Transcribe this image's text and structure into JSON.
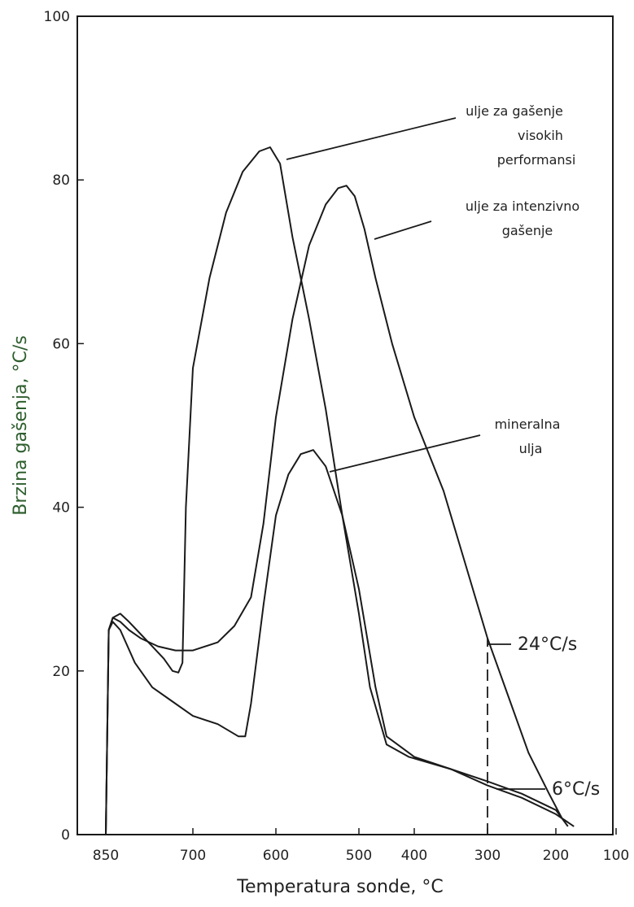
{
  "chart_data": {
    "type": "line",
    "title": "",
    "xlabel": "Temperatura sonde, °C",
    "ylabel": "Brzina gašenja, °C/s",
    "xlim": [
      100,
      850
    ],
    "ylim": [
      0,
      100
    ],
    "x_reversed": true,
    "x_ticks": [
      "850",
      "700",
      "600",
      "500",
      "400",
      "300",
      "200",
      "100"
    ],
    "y_ticks": [
      "0",
      "20",
      "40",
      "60",
      "80",
      "100"
    ],
    "grid": false,
    "series": [
      {
        "name": "ulje za gašenje visokih performansi",
        "points": [
          [
            850,
            0
          ],
          [
            845,
            25
          ],
          [
            838,
            26.5
          ],
          [
            825,
            27
          ],
          [
            810,
            26
          ],
          [
            790,
            24.5
          ],
          [
            770,
            23
          ],
          [
            750,
            21.5
          ],
          [
            735,
            20
          ],
          [
            725,
            19.8
          ],
          [
            718,
            21
          ],
          [
            712,
            40
          ],
          [
            700,
            57
          ],
          [
            680,
            68
          ],
          [
            660,
            76
          ],
          [
            640,
            81
          ],
          [
            620,
            83.5
          ],
          [
            607,
            84
          ],
          [
            595,
            82
          ],
          [
            580,
            73
          ],
          [
            560,
            63
          ],
          [
            540,
            52
          ],
          [
            520,
            39
          ],
          [
            500,
            27
          ],
          [
            480,
            18
          ],
          [
            465,
            14.5
          ],
          [
            450,
            11
          ],
          [
            410,
            9.5
          ],
          [
            350,
            8
          ],
          [
            300,
            6.5
          ],
          [
            250,
            5
          ],
          [
            200,
            3
          ],
          [
            180,
            1
          ]
        ]
      },
      {
        "name": "ulje za intenzivno gašenje",
        "points": [
          [
            850,
            0
          ],
          [
            845,
            25
          ],
          [
            838,
            26.5
          ],
          [
            825,
            26
          ],
          [
            810,
            25
          ],
          [
            790,
            24
          ],
          [
            760,
            23
          ],
          [
            730,
            22.5
          ],
          [
            700,
            22.5
          ],
          [
            670,
            23.5
          ],
          [
            650,
            25.5
          ],
          [
            630,
            29
          ],
          [
            615,
            38
          ],
          [
            600,
            51
          ],
          [
            580,
            63
          ],
          [
            560,
            72
          ],
          [
            540,
            77
          ],
          [
            525,
            79
          ],
          [
            515,
            79.3
          ],
          [
            505,
            78
          ],
          [
            490,
            74
          ],
          [
            470,
            68
          ],
          [
            440,
            60
          ],
          [
            400,
            51
          ],
          [
            360,
            42
          ],
          [
            330,
            33
          ],
          [
            300,
            24
          ],
          [
            270,
            17
          ],
          [
            240,
            10
          ],
          [
            210,
            5
          ],
          [
            190,
            2
          ],
          [
            170,
            1
          ]
        ]
      },
      {
        "name": "mineralna ulja",
        "points": [
          [
            850,
            0
          ],
          [
            845,
            25
          ],
          [
            838,
            26
          ],
          [
            825,
            25
          ],
          [
            800,
            21
          ],
          [
            770,
            18
          ],
          [
            740,
            16.5
          ],
          [
            700,
            14.5
          ],
          [
            670,
            13.5
          ],
          [
            645,
            12
          ],
          [
            637,
            12
          ],
          [
            630,
            16
          ],
          [
            615,
            28
          ],
          [
            600,
            39
          ],
          [
            585,
            44
          ],
          [
            570,
            46.5
          ],
          [
            555,
            47
          ],
          [
            540,
            45
          ],
          [
            520,
            39
          ],
          [
            500,
            30
          ],
          [
            470,
            18
          ],
          [
            450,
            12
          ],
          [
            430,
            11
          ],
          [
            400,
            9.5
          ],
          [
            350,
            8
          ],
          [
            300,
            6
          ],
          [
            250,
            4.5
          ],
          [
            200,
            2.5
          ],
          [
            180,
            1.5
          ]
        ]
      }
    ],
    "reference_line": {
      "x": 300,
      "from_y": 0,
      "to_y": 24,
      "style": "dashed"
    },
    "annotations": {
      "high_perf": [
        "ulje za gašenje",
        "visokih",
        "performansi"
      ],
      "intensive": [
        "ulje za intenzivno",
        "gašenje"
      ],
      "mineral": [
        "mineralna",
        "ulja"
      ],
      "marker_24": "24°C/s",
      "marker_6": "6°C/s"
    },
    "colors": {
      "line": "#1a1a1a",
      "axis_title": "#2e5e2e",
      "frame": "#1a1a1a"
    }
  }
}
